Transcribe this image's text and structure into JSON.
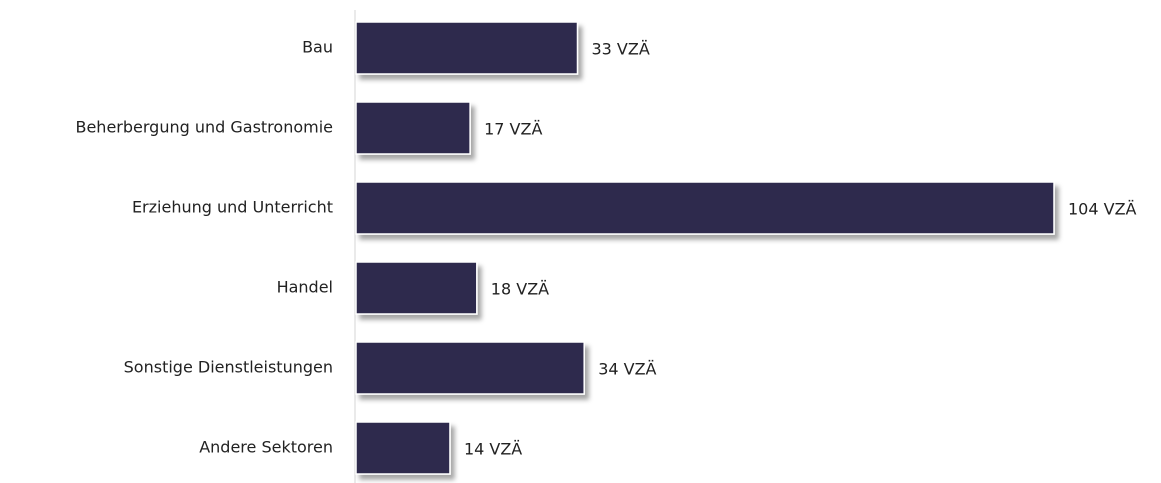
{
  "chart_data": {
    "type": "barh",
    "categories": [
      "Bau",
      "Beherbergung und Gastronomie",
      "Erziehung und Unterricht",
      "Handel",
      "Sonstige Dienstleistungen",
      "Andere Sektoren"
    ],
    "values": [
      33,
      17,
      104,
      18,
      34,
      14
    ],
    "value_labels": [
      "33 VZÄ",
      "17 VZÄ",
      "104 VZÄ",
      "18 VZÄ",
      "34 VZÄ",
      "14 VZÄ"
    ],
    "color": "#2d2b4d"
  }
}
